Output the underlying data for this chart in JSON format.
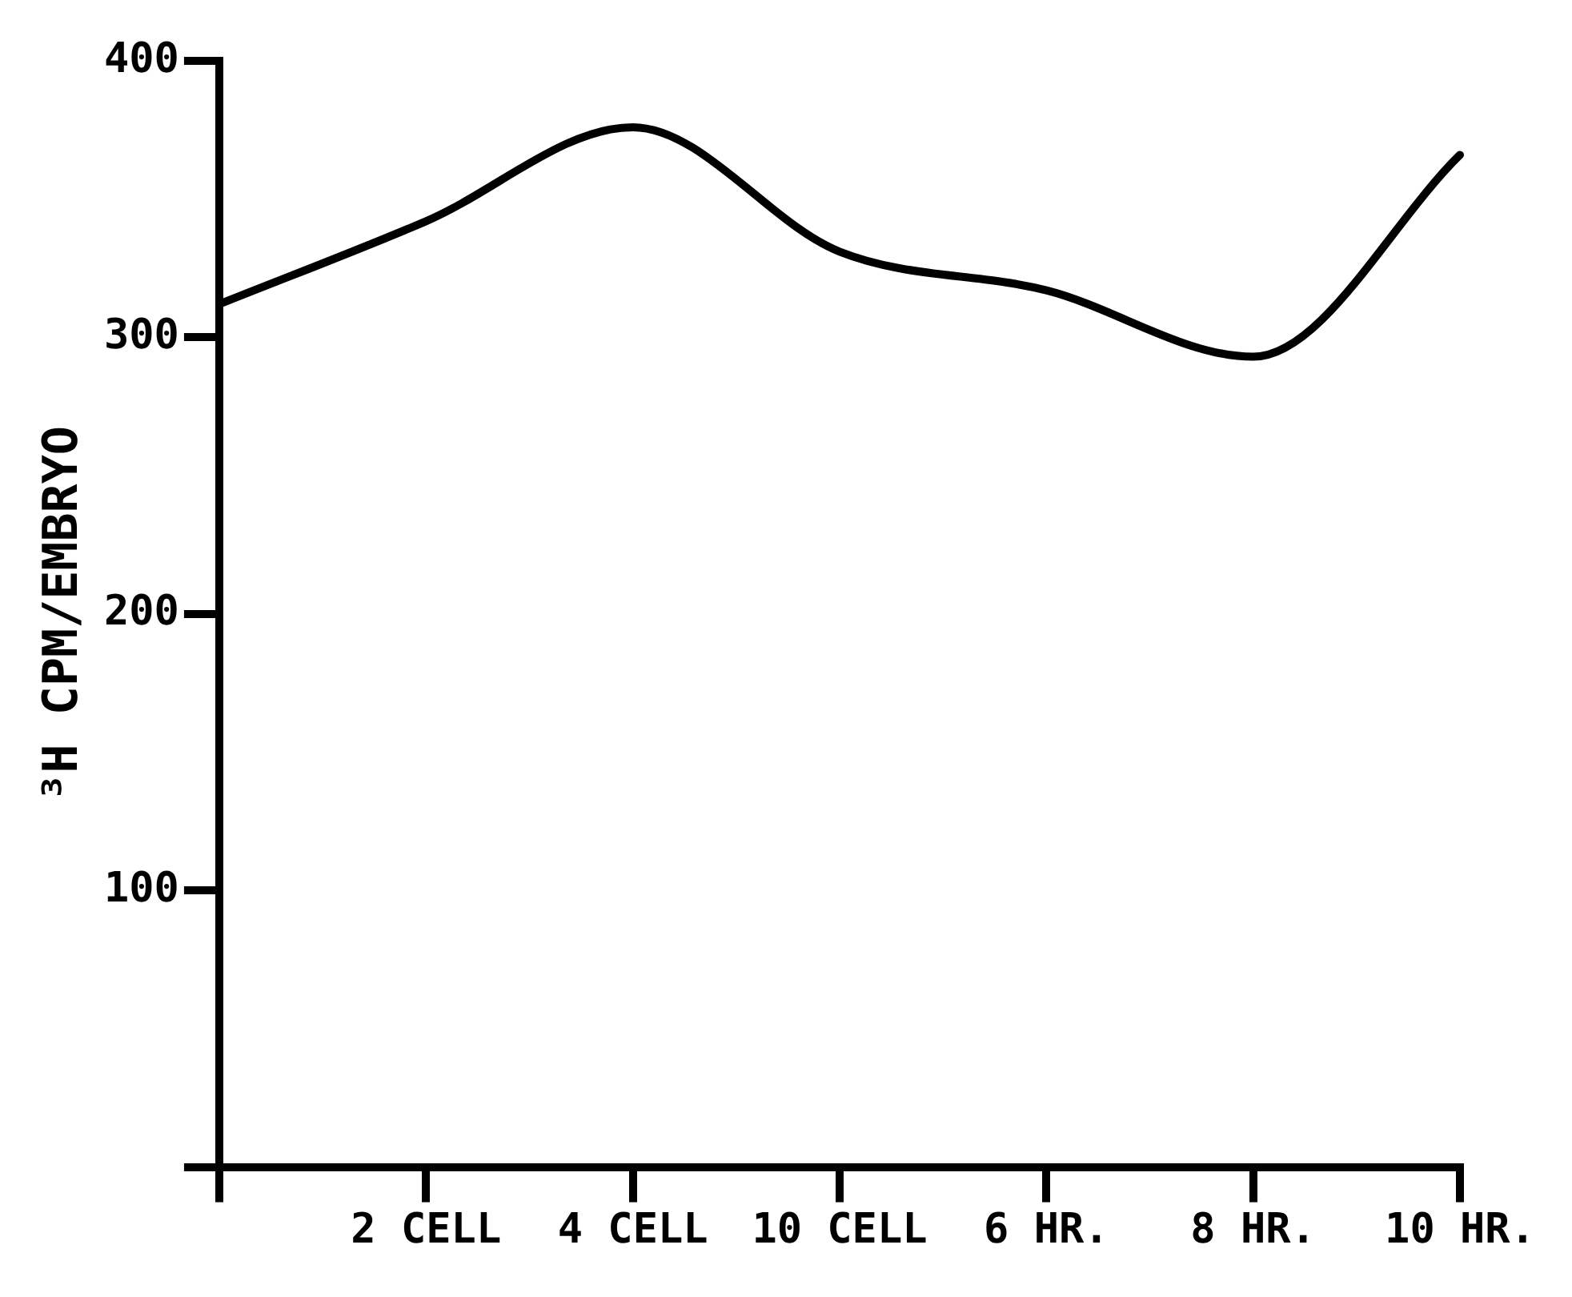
{
  "chart_data": {
    "type": "line",
    "ylabel": "³H CPM/EMBRYO",
    "categories": [
      null,
      "2 CELL",
      "4 CELL",
      "10 CELL",
      "6 HR.",
      "8 HR.",
      "10 HR."
    ],
    "series": [
      {
        "color": "#000000",
        "values": [
          312,
          342,
          376,
          331,
          317,
          293,
          366
        ]
      }
    ],
    "ylim": [
      0,
      400
    ],
    "yticks": [
      {
        "value": 0,
        "label": null
      },
      100,
      200,
      300,
      400
    ],
    "grid": false,
    "legend": false,
    "marker": "none",
    "line_style": "solid"
  }
}
